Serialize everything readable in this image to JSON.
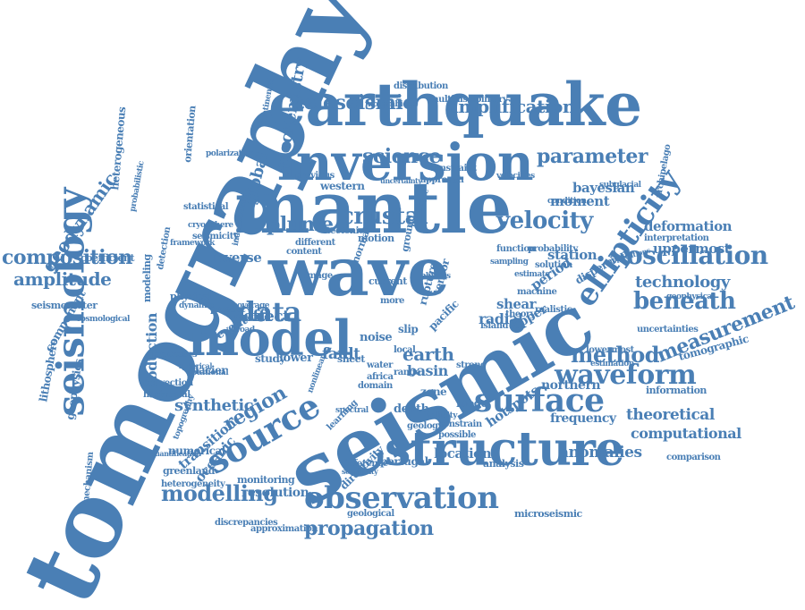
{
  "color": "#4a7fb5",
  "words": [
    "tomography",
    "seismic",
    "mantle",
    "wave",
    "earthquake",
    "inversion",
    "model",
    "structure",
    "seismology",
    "source",
    "surface",
    "observation",
    "ellipticity",
    "waveform",
    "oscillation",
    "data",
    "measurement",
    "crustal",
    "velocity",
    "teleseismic",
    "amplification",
    "science",
    "beneath",
    "method",
    "modelling",
    "propagation",
    "plume",
    "region",
    "parameter",
    "composition",
    "geodynamic",
    "amplitude",
    "geochemistry",
    "earth",
    "global",
    "technology",
    "synthetic",
    "theoretical",
    "computational",
    "anomalies",
    "subduction",
    "uppermost",
    "bayesian",
    "hotspots",
    "moment",
    "deformation",
    "location",
    "transition",
    "oceanic",
    "resolution",
    "effect",
    "inverse",
    "fault",
    "basin",
    "radial",
    "period",
    "shear",
    "station",
    "northern",
    "frequency",
    "heterogeneous",
    "orientation",
    "lithosphere",
    "component",
    "geophysics",
    "coefficient",
    "seismometer",
    "modeling",
    "directivity",
    "microseismic",
    "numerical",
    "greenland",
    "heterogeneity",
    "discrepancies",
    "approximation",
    "monitoring",
    "tomographic",
    "information",
    "dispersion",
    "upper",
    "noise",
    "convection",
    "horizontal",
    "processes",
    "glacier",
    "mechanism",
    "statistical",
    "archipelago",
    "comparison",
    "constrain",
    "portugal",
    "inference",
    "geological",
    "analysis",
    "depth",
    "domain",
    "zone",
    "mode",
    "possible",
    "geology",
    "western",
    "previous",
    "approach",
    "constraint",
    "distribution",
    "multidisciplinary",
    "mozambique",
    "subglacial",
    "function",
    "probability",
    "island",
    "theory",
    "interpretation",
    "uncertainties",
    "lowermost",
    "estimation",
    "physical",
    "framework",
    "polarization",
    "independent",
    "continental",
    "tectonic",
    "different",
    "motion",
    "normal",
    "current",
    "content",
    "image",
    "coverage",
    "multiple",
    "broad",
    "rotational",
    "study",
    "lower",
    "pacific",
    "sheet",
    "event",
    "present",
    "local",
    "range",
    "water",
    "africa",
    "strong",
    "solution",
    "condition",
    "machine",
    "realistic",
    "uncertainty",
    "cryosphere",
    "seismicity",
    "ground",
    "isotropic",
    "learning",
    "spectral",
    "geophysical",
    "tensor",
    "topography",
    "quantification",
    "cosmological",
    "probabilistic",
    "dynamic",
    "sampling",
    "rupture",
    "validity",
    "sensitivity",
    "spherical",
    "slip",
    "detection",
    "applications",
    "velocities",
    "estimate",
    "nonlinear",
    "physics",
    "more"
  ]
}
